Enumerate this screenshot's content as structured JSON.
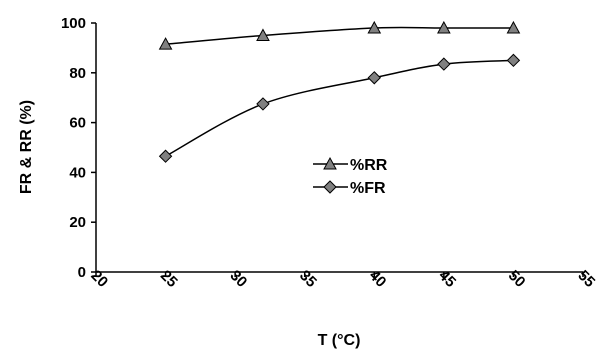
{
  "chart_data": {
    "type": "line",
    "xlabel": "T (°C)",
    "ylabel": "FR & RR (%)",
    "xlim": [
      20,
      55
    ],
    "ylim": [
      0,
      100
    ],
    "x_ticks": [
      20,
      25,
      30,
      35,
      40,
      45,
      50,
      55
    ],
    "y_ticks": [
      0,
      20,
      40,
      60,
      80,
      100
    ],
    "grid": false,
    "legend_position": "center",
    "series": [
      {
        "name": "%RR",
        "marker": "triangle",
        "color": "#808080",
        "x": [
          25,
          32,
          40,
          45,
          50
        ],
        "y": [
          91.5,
          95,
          98,
          98,
          98
        ]
      },
      {
        "name": "%FR",
        "marker": "diamond",
        "color": "#808080",
        "x": [
          25,
          32,
          40,
          45,
          50
        ],
        "y": [
          46.5,
          67.5,
          78,
          83.5,
          85
        ]
      }
    ]
  }
}
